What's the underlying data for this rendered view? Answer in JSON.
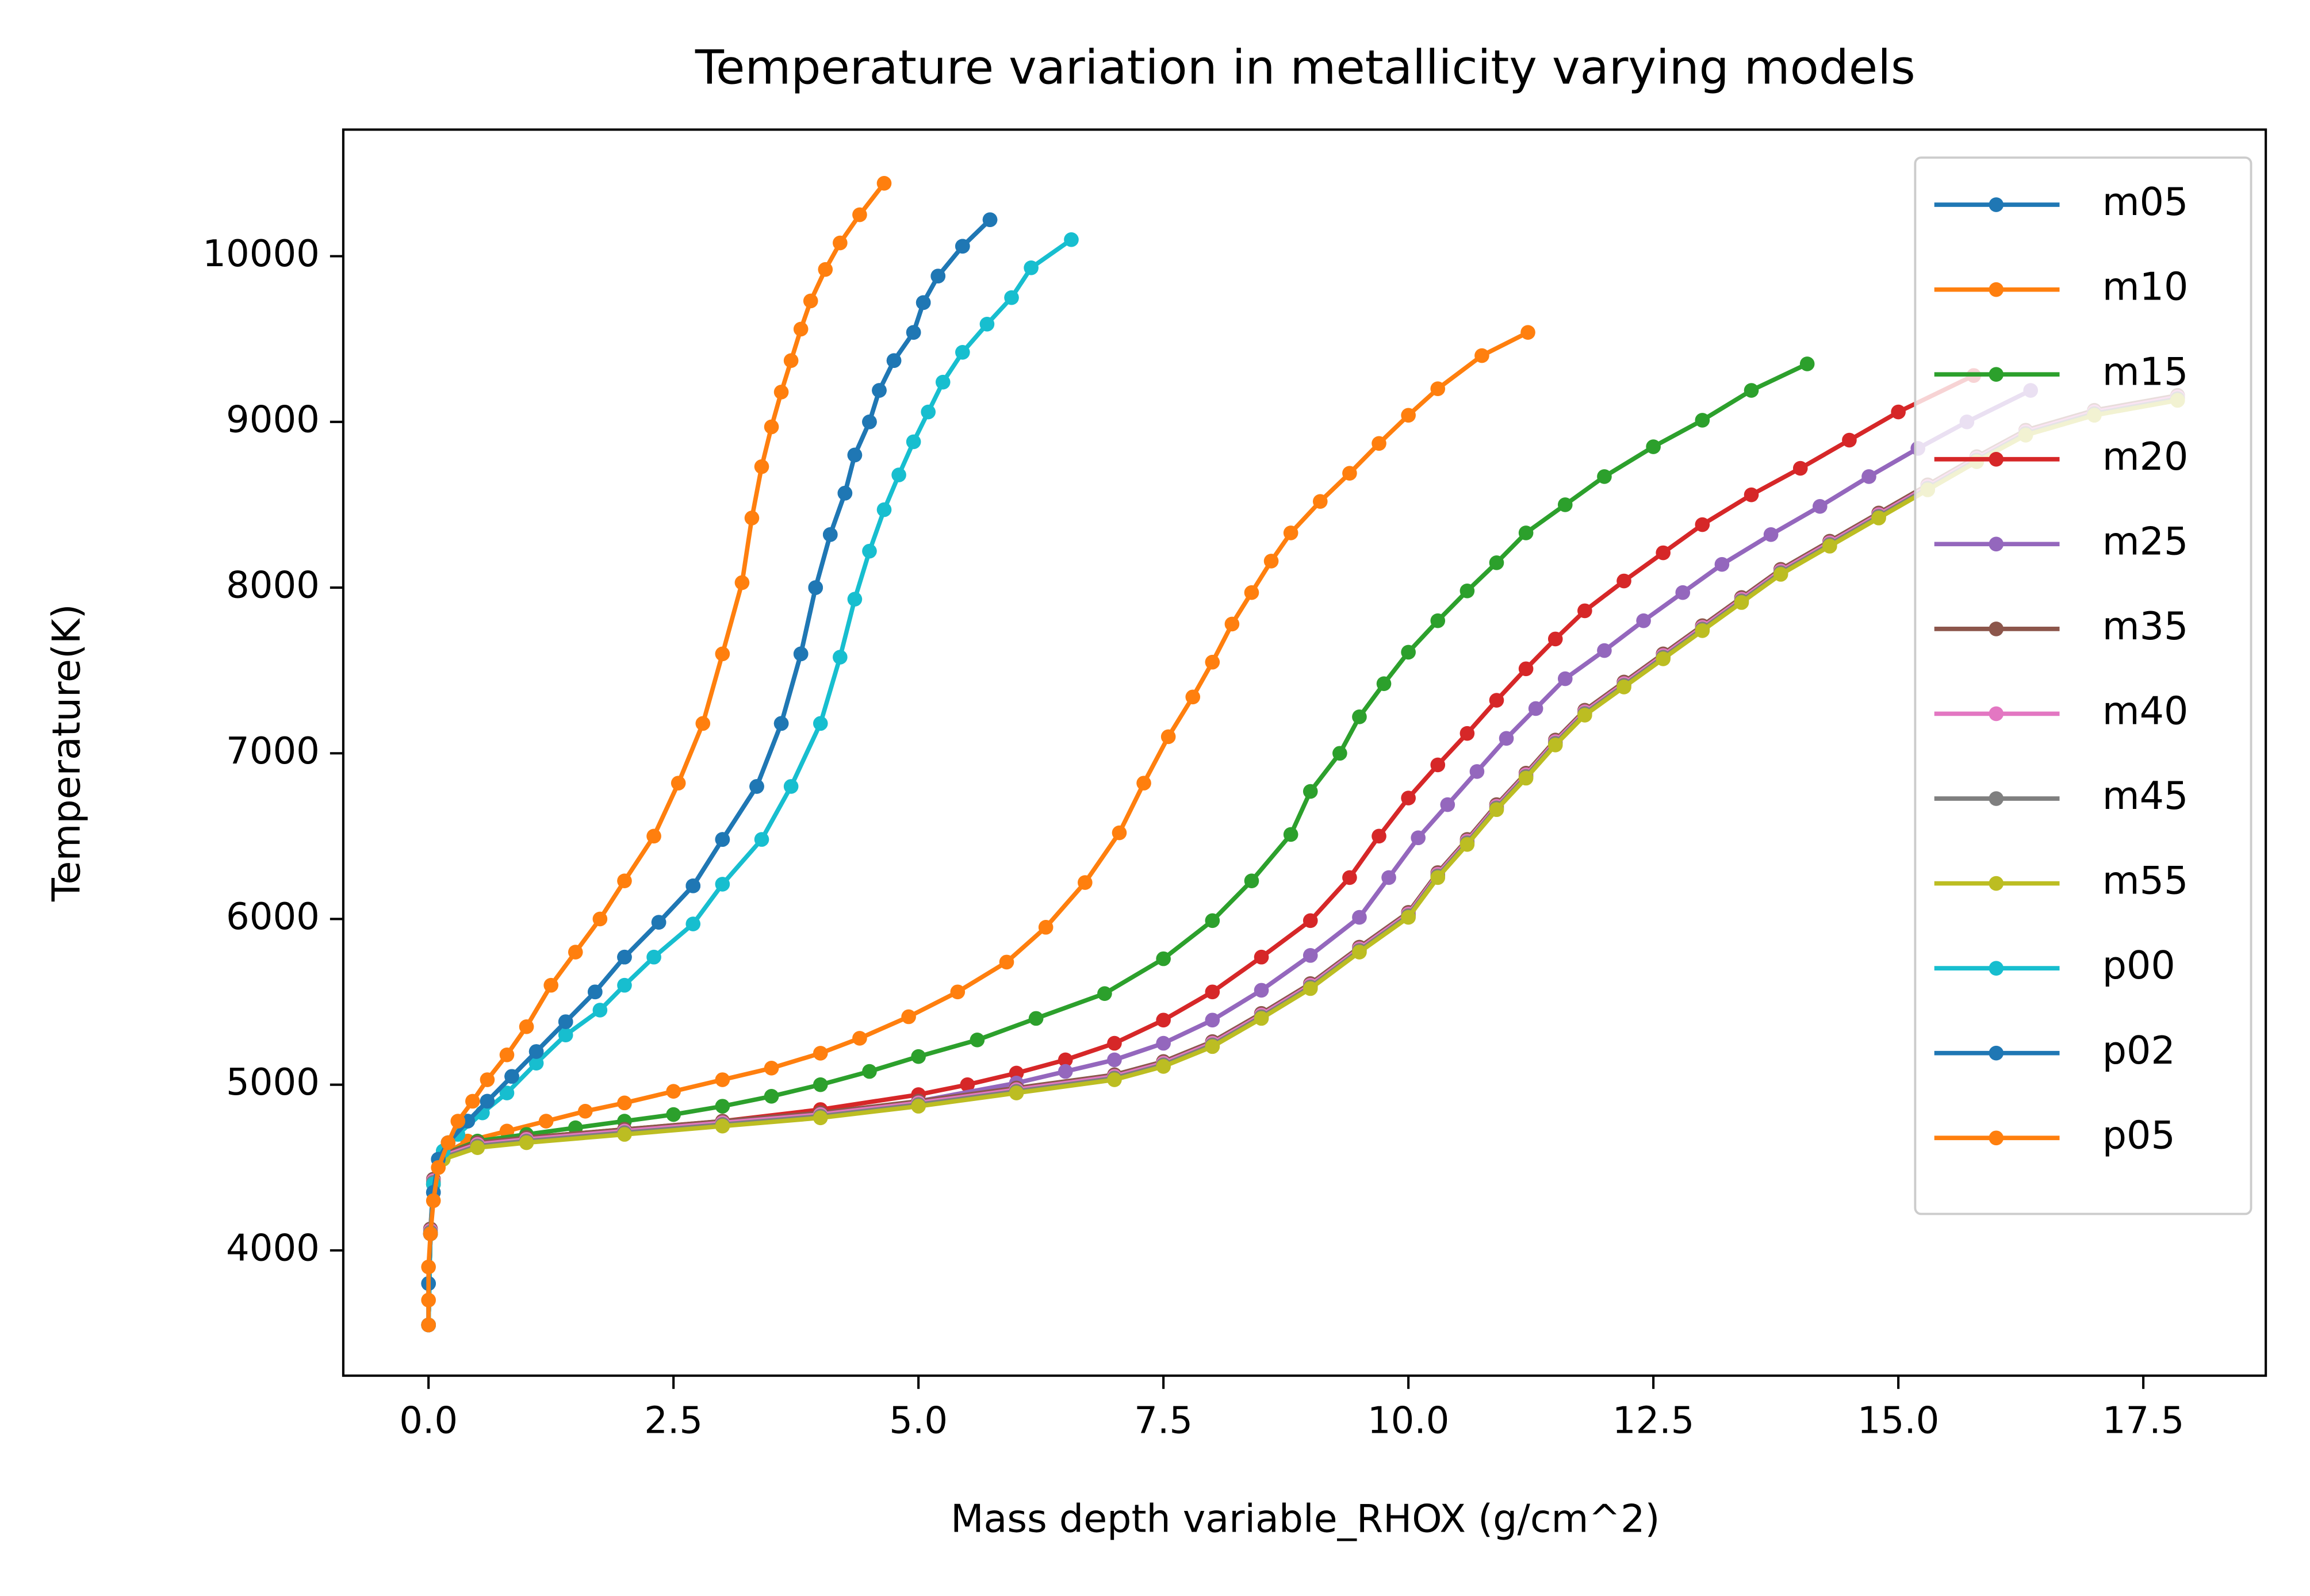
{
  "chart_data": {
    "type": "line",
    "title": "Temperature variation in metallicity varying models",
    "x_label": "Mass depth variable_RHOX (g/cm^2)",
    "y_label": "Temperature(K)",
    "xlim": [
      -0.87,
      18.75
    ],
    "ylim": [
      3244,
      10764
    ],
    "xticks": [
      {
        "value": 0,
        "label": "0.0"
      },
      2.5,
      {
        "value": 5,
        "label": "5.0"
      },
      7.5,
      {
        "value": 10,
        "label": "10.0"
      },
      12.5,
      {
        "value": 15,
        "label": "15.0"
      },
      17.5
    ],
    "yticks": [
      4000,
      5000,
      6000,
      7000,
      8000,
      9000,
      10000
    ],
    "grid": false,
    "legend": "upper right",
    "series": [
      {
        "name": "m05",
        "color": "#1f77b4",
        "x": [
          0,
          0,
          0.02,
          0.05,
          0.1,
          0.2,
          0.4,
          0.6,
          0.85,
          1.1,
          1.4,
          1.7,
          2.0,
          2.35,
          2.7,
          3.0,
          3.35,
          3.6,
          3.8,
          3.95,
          4.1,
          4.25,
          4.35,
          4.5,
          4.6,
          4.75,
          4.95,
          5.05,
          5.2,
          5.45,
          5.73
        ],
        "values": [
          3550,
          3800,
          4100,
          4350,
          4550,
          4650,
          4780,
          4900,
          5050,
          5200,
          5380,
          5560,
          5770,
          5980,
          6200,
          6480,
          6800,
          7180,
          7600,
          8000,
          8320,
          8570,
          8800,
          9000,
          9190,
          9370,
          9540,
          9720,
          9880,
          10060,
          10220
        ]
      },
      {
        "name": "m10",
        "color": "#ff7f0e",
        "x": [
          0,
          0.02,
          0.05,
          0.15,
          0.4,
          0.8,
          1.2,
          1.6,
          2.0,
          2.5,
          3.0,
          3.5,
          4.0,
          4.4,
          4.9,
          5.4,
          5.9,
          6.3,
          6.7,
          7.05,
          7.3,
          7.55,
          7.8,
          8.0,
          8.2,
          8.4,
          8.6,
          8.8,
          9.1,
          9.4,
          9.7,
          10.0,
          10.3,
          10.75,
          11.22
        ],
        "values": [
          3550,
          4100,
          4400,
          4580,
          4660,
          4720,
          4780,
          4840,
          4890,
          4960,
          5030,
          5100,
          5190,
          5280,
          5410,
          5560,
          5740,
          5950,
          6220,
          6520,
          6820,
          7100,
          7340,
          7550,
          7780,
          7970,
          8160,
          8330,
          8520,
          8690,
          8870,
          9040,
          9200,
          9400,
          9540
        ]
      },
      {
        "name": "m15",
        "color": "#2ca02c",
        "x": [
          0,
          0.02,
          0.05,
          0.15,
          0.5,
          1.0,
          1.5,
          2.0,
          2.5,
          3.0,
          3.5,
          4.0,
          4.5,
          5.0,
          5.6,
          6.2,
          6.9,
          7.5,
          8.0,
          8.4,
          8.8,
          9.0,
          9.3,
          9.5,
          9.75,
          10.0,
          10.3,
          10.6,
          10.9,
          11.2,
          11.6,
          12.0,
          12.5,
          13.0,
          13.5,
          14.07
        ],
        "values": [
          3550,
          4100,
          4400,
          4580,
          4660,
          4700,
          4740,
          4780,
          4820,
          4870,
          4930,
          5000,
          5080,
          5170,
          5270,
          5400,
          5550,
          5760,
          5990,
          6230,
          6510,
          6770,
          7000,
          7220,
          7420,
          7610,
          7800,
          7980,
          8150,
          8330,
          8500,
          8670,
          8850,
          9010,
          9190,
          9350
        ]
      },
      {
        "name": "m20",
        "color": "#d62728",
        "x": [
          0,
          0.02,
          0.05,
          0.15,
          0.5,
          1.0,
          2.0,
          3.0,
          4.0,
          5.0,
          5.5,
          6.0,
          6.5,
          7.0,
          7.5,
          8.0,
          8.5,
          9.0,
          9.4,
          9.7,
          10.0,
          10.3,
          10.6,
          10.9,
          11.2,
          11.5,
          11.8,
          12.2,
          12.6,
          13.0,
          13.5,
          14.0,
          14.5,
          15.0,
          15.77
        ],
        "values": [
          3550,
          4100,
          4400,
          4570,
          4640,
          4680,
          4730,
          4780,
          4850,
          4940,
          5000,
          5070,
          5150,
          5250,
          5390,
          5560,
          5770,
          5990,
          6250,
          6500,
          6730,
          6930,
          7120,
          7320,
          7510,
          7690,
          7860,
          8040,
          8210,
          8380,
          8560,
          8720,
          8890,
          9060,
          9280
        ]
      },
      {
        "name": "m25",
        "color": "#9467bd",
        "x": [
          0,
          0.02,
          0.05,
          0.15,
          0.5,
          1.0,
          2.0,
          3.0,
          4.0,
          5.0,
          6.0,
          6.5,
          7.0,
          7.5,
          8.0,
          8.5,
          9.0,
          9.5,
          9.8,
          10.1,
          10.4,
          10.7,
          11.0,
          11.3,
          11.6,
          12.0,
          12.4,
          12.8,
          13.2,
          13.7,
          14.2,
          14.7,
          15.2,
          15.7,
          16.35
        ],
        "values": [
          3550,
          4100,
          4400,
          4560,
          4630,
          4660,
          4710,
          4760,
          4820,
          4900,
          5010,
          5080,
          5150,
          5250,
          5390,
          5570,
          5780,
          6010,
          6250,
          6490,
          6690,
          6890,
          7090,
          7270,
          7450,
          7620,
          7800,
          7970,
          8140,
          8320,
          8490,
          8670,
          8840,
          9000,
          9190
        ]
      },
      {
        "name": "m35",
        "color": "#8c564b",
        "x": [
          0,
          0.02,
          0.05,
          0.15,
          0.5,
          1.0,
          2.0,
          3.0,
          4.0,
          5.0,
          6.0,
          7.0,
          7.5,
          8.0,
          8.5,
          9.0,
          9.5,
          10.0,
          10.3,
          10.6,
          10.9,
          11.2,
          11.5,
          11.8,
          12.2,
          12.6,
          13.0,
          13.4,
          13.8,
          14.3,
          14.8,
          15.3,
          15.8,
          16.3,
          17.0,
          17.85
        ],
        "values": [
          3550,
          4130,
          4430,
          4580,
          4650,
          4680,
          4730,
          4780,
          4830,
          4900,
          4980,
          5060,
          5140,
          5260,
          5430,
          5610,
          5830,
          6040,
          6280,
          6480,
          6690,
          6880,
          7080,
          7260,
          7430,
          7600,
          7770,
          7940,
          8110,
          8280,
          8450,
          8620,
          8790,
          8950,
          9070,
          9160
        ]
      },
      {
        "name": "m40",
        "color": "#e377c2",
        "x": [
          0,
          0.02,
          0.05,
          0.15,
          0.5,
          1.0,
          2.0,
          3.0,
          4.0,
          5.0,
          6.0,
          7.0,
          7.5,
          8.0,
          8.5,
          9.0,
          9.5,
          10.0,
          10.3,
          10.6,
          10.9,
          11.2,
          11.5,
          11.8,
          12.2,
          12.6,
          13.0,
          13.4,
          13.8,
          14.3,
          14.8,
          15.3,
          15.8,
          16.3,
          17.0,
          17.85
        ],
        "values": [
          3550,
          4120,
          4420,
          4570,
          4640,
          4670,
          4720,
          4770,
          4820,
          4890,
          4970,
          5050,
          5130,
          5250,
          5420,
          5600,
          5820,
          6030,
          6270,
          6470,
          6680,
          6870,
          7070,
          7250,
          7420,
          7590,
          7760,
          7930,
          8100,
          8270,
          8440,
          8610,
          8780,
          8940,
          9060,
          9150
        ]
      },
      {
        "name": "m45",
        "color": "#7f7f7f",
        "x": [
          0,
          0.02,
          0.05,
          0.15,
          0.5,
          1.0,
          2.0,
          3.0,
          4.0,
          5.0,
          6.0,
          7.0,
          7.5,
          8.0,
          8.5,
          9.0,
          9.5,
          10.0,
          10.3,
          10.6,
          10.9,
          11.2,
          11.5,
          11.8,
          12.2,
          12.6,
          13.0,
          13.4,
          13.8,
          14.3,
          14.8,
          15.3,
          15.8,
          16.3,
          17.0,
          17.85
        ],
        "values": [
          3550,
          4110,
          4410,
          4560,
          4630,
          4660,
          4710,
          4760,
          4810,
          4880,
          4960,
          5040,
          5120,
          5240,
          5410,
          5590,
          5810,
          6020,
          6260,
          6460,
          6670,
          6860,
          7060,
          7240,
          7410,
          7580,
          7750,
          7920,
          8090,
          8260,
          8430,
          8600,
          8770,
          8930,
          9050,
          9140
        ]
      },
      {
        "name": "m55",
        "color": "#bcbd22",
        "x": [
          0,
          0.02,
          0.05,
          0.15,
          0.5,
          1.0,
          2.0,
          3.0,
          4.0,
          5.0,
          6.0,
          7.0,
          7.5,
          8.0,
          8.5,
          9.0,
          9.5,
          10.0,
          10.3,
          10.6,
          10.9,
          11.2,
          11.5,
          11.8,
          12.2,
          12.6,
          13.0,
          13.4,
          13.8,
          14.3,
          14.8,
          15.3,
          15.8,
          16.3,
          17.0,
          17.85
        ],
        "values": [
          3550,
          4100,
          4400,
          4550,
          4620,
          4650,
          4700,
          4750,
          4800,
          4870,
          4950,
          5030,
          5110,
          5230,
          5400,
          5580,
          5800,
          6010,
          6250,
          6450,
          6660,
          6850,
          7050,
          7230,
          7400,
          7570,
          7740,
          7910,
          8080,
          8250,
          8420,
          8590,
          8760,
          8920,
          9040,
          9130
        ]
      },
      {
        "name": "p00",
        "color": "#17becf",
        "x": [
          0,
          0.02,
          0.05,
          0.15,
          0.3,
          0.55,
          0.8,
          1.1,
          1.4,
          1.75,
          2.0,
          2.3,
          2.7,
          3.0,
          3.4,
          3.7,
          4.0,
          4.2,
          4.35,
          4.5,
          4.65,
          4.8,
          4.95,
          5.1,
          5.25,
          5.45,
          5.7,
          5.95,
          6.15,
          6.56
        ],
        "values": [
          3550,
          4100,
          4400,
          4600,
          4700,
          4830,
          4950,
          5130,
          5300,
          5450,
          5600,
          5770,
          5970,
          6210,
          6480,
          6800,
          7180,
          7580,
          7930,
          8220,
          8470,
          8680,
          8880,
          9060,
          9240,
          9420,
          9590,
          9750,
          9930,
          10100
        ]
      },
      {
        "name": "p02",
        "color": "#1f77b4",
        "x": [
          0,
          0,
          0.02,
          0.05,
          0.1,
          0.2,
          0.4,
          0.6,
          0.85,
          1.1,
          1.4,
          1.7,
          2.0,
          2.35,
          2.7,
          3.0,
          3.35,
          3.6,
          3.8,
          3.95,
          4.1,
          4.25,
          4.35,
          4.5,
          4.6,
          4.75,
          4.95,
          5.05,
          5.2,
          5.45,
          5.73
        ],
        "values": [
          3550,
          3800,
          4100,
          4350,
          4550,
          4650,
          4780,
          4900,
          5050,
          5200,
          5380,
          5560,
          5770,
          5980,
          6200,
          6480,
          6800,
          7180,
          7600,
          8000,
          8320,
          8570,
          8800,
          9000,
          9190,
          9370,
          9540,
          9720,
          9880,
          10060,
          10220
        ]
      },
      {
        "name": "p05",
        "color": "#ff7f0e",
        "x": [
          0,
          0,
          0,
          0.02,
          0.05,
          0.1,
          0.2,
          0.3,
          0.45,
          0.6,
          0.8,
          1.0,
          1.25,
          1.5,
          1.75,
          2.0,
          2.3,
          2.55,
          2.8,
          3.0,
          3.2,
          3.3,
          3.4,
          3.5,
          3.6,
          3.7,
          3.8,
          3.9,
          4.05,
          4.2,
          4.4,
          4.65
        ],
        "values": [
          3550,
          3700,
          3900,
          4100,
          4300,
          4500,
          4650,
          4780,
          4900,
          5030,
          5180,
          5350,
          5600,
          5800,
          6000,
          6230,
          6500,
          6820,
          7180,
          7600,
          8030,
          8420,
          8730,
          8970,
          9180,
          9370,
          9560,
          9730,
          9920,
          10080,
          10250,
          10440
        ]
      }
    ]
  }
}
